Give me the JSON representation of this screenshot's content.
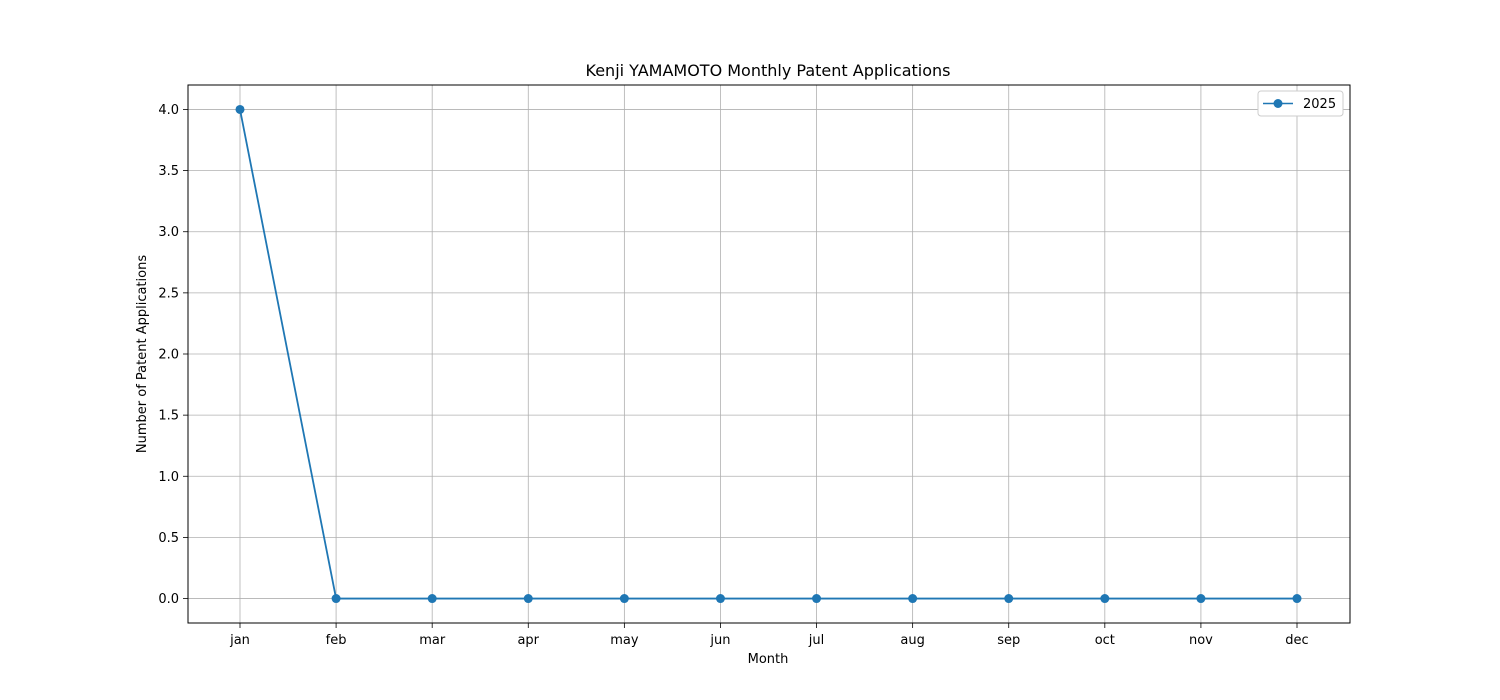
{
  "chart_data": {
    "type": "line",
    "title": "Kenji YAMAMOTO Monthly Patent Applications",
    "xlabel": "Month",
    "ylabel": "Number of Patent Applications",
    "categories": [
      "jan",
      "feb",
      "mar",
      "apr",
      "may",
      "jun",
      "jul",
      "aug",
      "sep",
      "oct",
      "nov",
      "dec"
    ],
    "series": [
      {
        "name": "2025",
        "color": "#1f77b4",
        "values": [
          4,
          0,
          0,
          0,
          0,
          0,
          0,
          0,
          0,
          0,
          0,
          0
        ]
      }
    ],
    "ylim": [
      -0.2,
      4.2
    ],
    "yticks": [
      "0.0",
      "0.5",
      "1.0",
      "1.5",
      "2.0",
      "2.5",
      "3.0",
      "3.5",
      "4.0"
    ],
    "grid": true,
    "legend_position": "top-right"
  }
}
